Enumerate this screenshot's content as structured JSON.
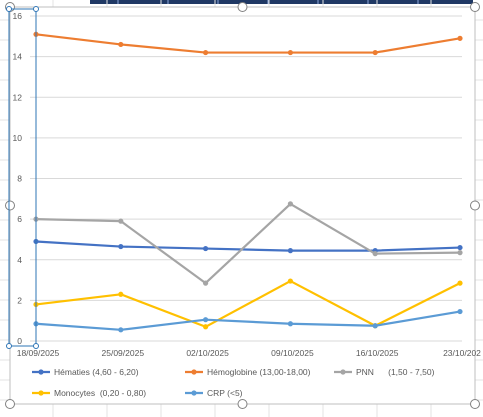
{
  "chart_data": {
    "type": "line",
    "title": "",
    "xlabel": "",
    "ylabel": "",
    "categories": [
      "18/09/2025",
      "25/09/2025",
      "02/10/2025",
      "09/10/2025",
      "16/10/2025",
      "23/10/202"
    ],
    "ylim": [
      0,
      16
    ],
    "yticks": [
      "0",
      "2",
      "4",
      "6",
      "8",
      "10",
      "12",
      "14",
      "16"
    ],
    "grid": true,
    "legend_position": "bottom",
    "series": [
      {
        "name": "Hématies (4,60 - 6,20)",
        "color": "#4472C4",
        "values": [
          4.9,
          4.65,
          4.55,
          4.45,
          4.45,
          4.6
        ]
      },
      {
        "name": "Hémoglobine (13,00-18,00)",
        "color": "#ED7D31",
        "values": [
          15.1,
          14.6,
          14.2,
          14.2,
          14.2,
          14.9
        ]
      },
      {
        "name": "PNN      (1,50 - 7,50)",
        "color": "#A5A5A5",
        "values": [
          6.0,
          5.9,
          2.85,
          6.75,
          4.3,
          4.35
        ]
      },
      {
        "name": "Monocytes  (0,20 - 0,80)",
        "color": "#FFC000",
        "values": [
          1.8,
          2.3,
          0.7,
          2.95,
          0.75,
          2.85
        ]
      },
      {
        "name": "CRP (<5)",
        "color": "#5B9BD5",
        "values": [
          0.85,
          0.55,
          1.05,
          0.85,
          0.75,
          1.45
        ]
      }
    ]
  }
}
